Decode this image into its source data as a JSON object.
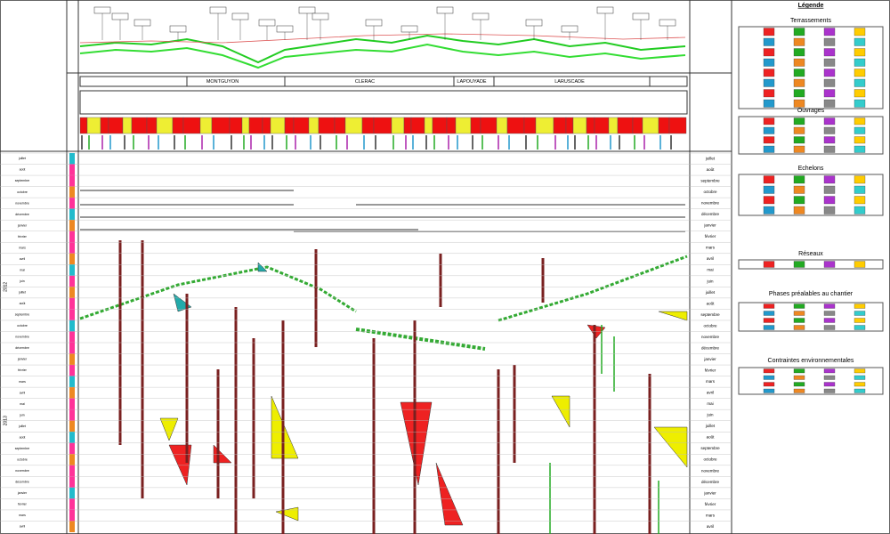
{
  "header": {
    "towns": [
      "MONTGUYON",
      "CLERAC",
      "LAPOUYADE",
      "LARUSCADE"
    ]
  },
  "legend": {
    "title": "Légende",
    "sections": [
      "Terrassements",
      "Ouvrages",
      "Echelons",
      "Réseaux",
      "Phases préalables au chantier",
      "Contraintes environnementales"
    ]
  },
  "calendar": {
    "years": [
      "2012",
      "2013"
    ],
    "months": [
      "juillet",
      "août",
      "septembre",
      "octobre",
      "novembre",
      "décembre",
      "janvier",
      "février",
      "mars",
      "avril",
      "mai",
      "juin",
      "juillet",
      "août",
      "septembre",
      "octobre",
      "novembre",
      "décembre",
      "janvier",
      "février",
      "mars",
      "avril",
      "mai",
      "juin",
      "juillet",
      "août",
      "septembre",
      "octobre",
      "novembre",
      "décembre",
      "janvier",
      "février",
      "mars",
      "avril"
    ]
  }
}
